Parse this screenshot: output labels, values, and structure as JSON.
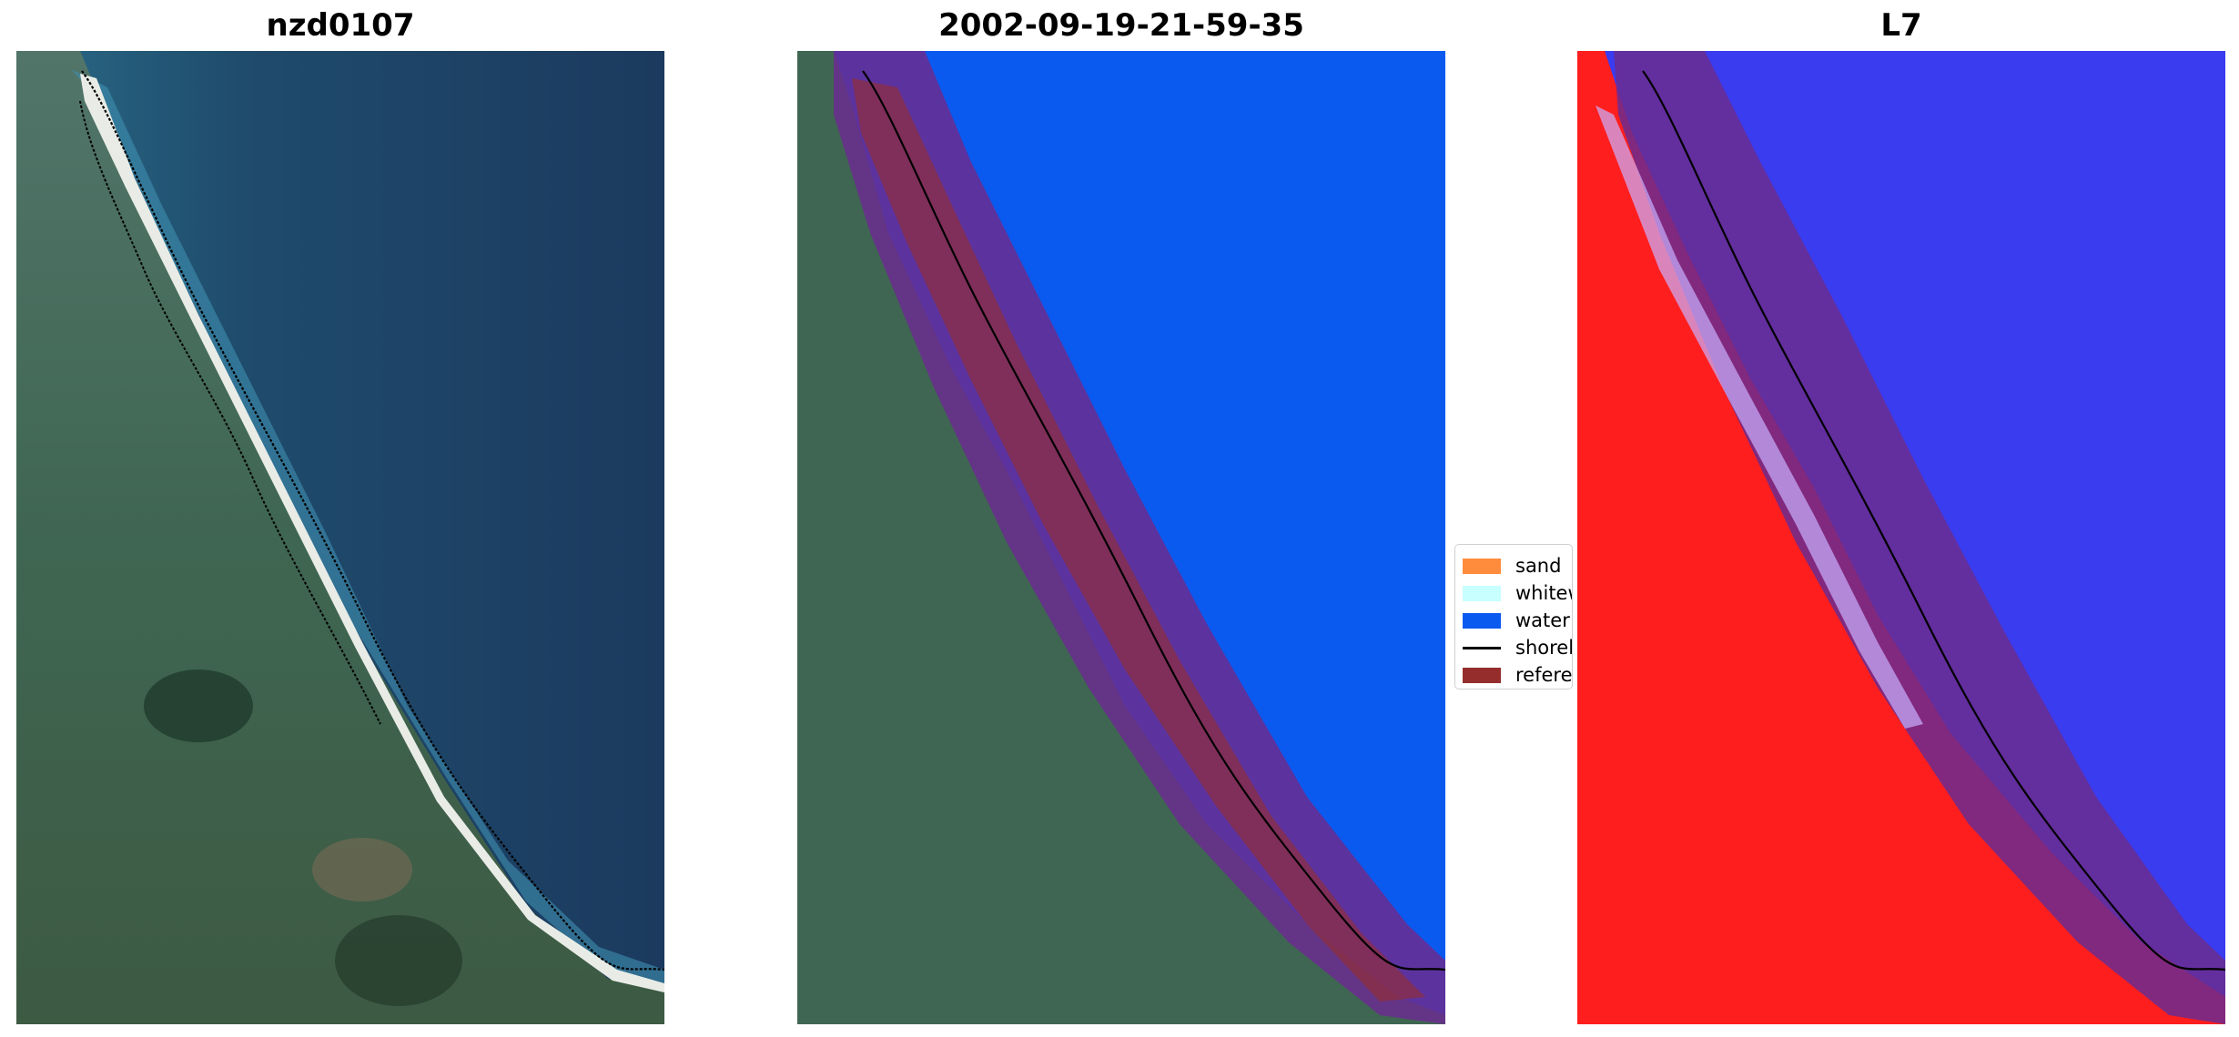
{
  "panels": [
    {
      "title": "nzd0107"
    },
    {
      "title": "2002-09-19-21-59-35"
    },
    {
      "title": "L7"
    }
  ],
  "legend": {
    "items": [
      {
        "label": "sand",
        "color": "#ff8c3c"
      },
      {
        "label": "whitewater",
        "color": "#c8ffff"
      },
      {
        "label": "water",
        "color": "#0a5af0"
      },
      {
        "label": "shoreline",
        "color": "#000000"
      },
      {
        "label": "reference shoreline buffer",
        "color": "#962d2d"
      }
    ]
  },
  "colors": {
    "ocean": "#1e3f63",
    "land": "#3f6652",
    "beach": "#e9ece6",
    "water_class": "#0a5af0",
    "buffer_overlay": "#6b2c8f",
    "land_index": "#ff1e1e",
    "water_index": "#3a3cf0"
  }
}
